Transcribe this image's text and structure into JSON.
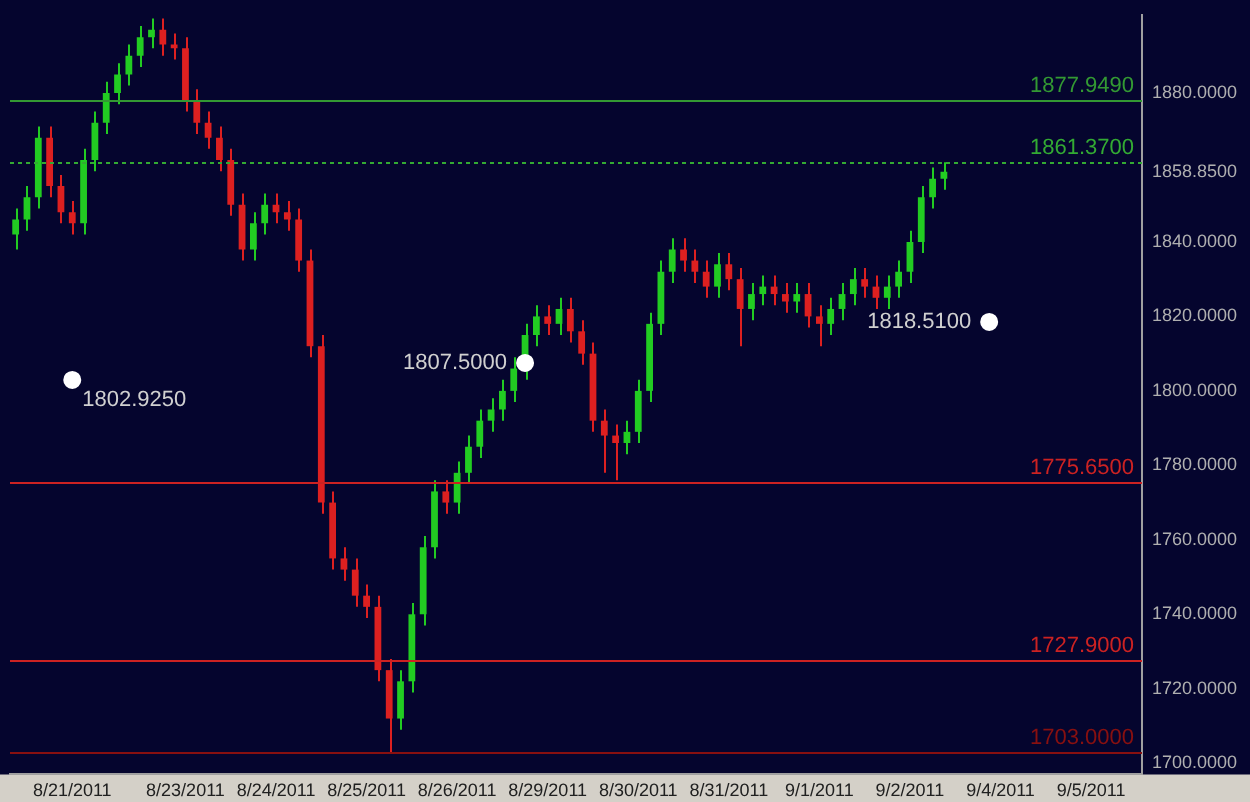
{
  "chart_data": {
    "type": "candlestick",
    "categories": [
      null,
      null,
      null,
      null,
      null,
      "8/21/2011",
      null,
      null,
      null,
      null,
      null,
      null,
      null,
      null,
      null,
      "8/23/2011",
      null,
      null,
      null,
      null,
      null,
      null,
      null,
      "8/24/2011",
      null,
      null,
      null,
      null,
      null,
      null,
      null,
      "8/25/2011",
      null,
      null,
      null,
      null,
      null,
      null,
      null,
      "8/26/2011",
      null,
      null,
      null,
      null,
      null,
      null,
      null,
      "8/29/2011",
      null,
      null,
      null,
      null,
      null,
      null,
      null,
      "8/30/2011",
      null,
      null,
      null,
      null,
      null,
      null,
      null,
      "8/31/2011",
      null,
      null,
      null,
      null,
      null,
      null,
      null,
      "9/1/2011",
      null,
      null,
      null,
      null,
      null,
      null,
      null,
      "9/2/2011",
      null,
      null,
      null,
      null,
      null,
      null,
      null,
      "9/4/2011",
      null,
      null,
      null,
      null,
      null,
      null,
      null,
      "9/5/2011",
      null,
      null,
      null,
      null
    ],
    "ohlc": [
      [
        1842,
        1849,
        1838,
        1846
      ],
      [
        1846,
        1855,
        1843,
        1852
      ],
      [
        1852,
        1871,
        1849,
        1868
      ],
      [
        1868,
        1871,
        1852,
        1855
      ],
      [
        1855,
        1858,
        1845,
        1848
      ],
      [
        1848,
        1851,
        1842,
        1845
      ],
      [
        1845,
        1865,
        1842,
        1862
      ],
      [
        1862,
        1875,
        1859,
        1872
      ],
      [
        1872,
        1883,
        1869,
        1880
      ],
      [
        1880,
        1888,
        1877,
        1885
      ],
      [
        1885,
        1893,
        1882,
        1890
      ],
      [
        1890,
        1898,
        1887,
        1895
      ],
      [
        1895,
        1900,
        1892,
        1897
      ],
      [
        1897,
        1900,
        1890,
        1893
      ],
      [
        1893,
        1896,
        1889,
        1892
      ],
      [
        1892,
        1895,
        1875,
        1878
      ],
      [
        1878,
        1881,
        1869,
        1872
      ],
      [
        1872,
        1875,
        1865,
        1868
      ],
      [
        1868,
        1871,
        1859,
        1862
      ],
      [
        1862,
        1865,
        1847,
        1850
      ],
      [
        1850,
        1853,
        1835,
        1838
      ],
      [
        1838,
        1848,
        1835,
        1845
      ],
      [
        1845,
        1853,
        1842,
        1850
      ],
      [
        1850,
        1853,
        1845,
        1848
      ],
      [
        1848,
        1851,
        1843,
        1846
      ],
      [
        1846,
        1849,
        1832,
        1835
      ],
      [
        1835,
        1838,
        1809,
        1812
      ],
      [
        1812,
        1815,
        1767,
        1770
      ],
      [
        1770,
        1773,
        1752,
        1755
      ],
      [
        1755,
        1758,
        1749,
        1752
      ],
      [
        1752,
        1755,
        1742,
        1745
      ],
      [
        1745,
        1748,
        1739,
        1742
      ],
      [
        1742,
        1745,
        1722,
        1725
      ],
      [
        1725,
        1728,
        1703,
        1712
      ],
      [
        1712,
        1725,
        1709,
        1722
      ],
      [
        1722,
        1743,
        1719,
        1740
      ],
      [
        1740,
        1761,
        1737,
        1758
      ],
      [
        1758,
        1776,
        1755,
        1773
      ],
      [
        1773,
        1776,
        1767,
        1770
      ],
      [
        1770,
        1781,
        1767,
        1778
      ],
      [
        1778,
        1788,
        1775,
        1785
      ],
      [
        1785,
        1795,
        1782,
        1792
      ],
      [
        1792,
        1798,
        1789,
        1795
      ],
      [
        1795,
        1803,
        1792,
        1800
      ],
      [
        1800,
        1809,
        1797,
        1806
      ],
      [
        1806,
        1818,
        1803,
        1815
      ],
      [
        1815,
        1823,
        1812,
        1820
      ],
      [
        1820,
        1823,
        1815,
        1818
      ],
      [
        1818,
        1825,
        1815,
        1822
      ],
      [
        1822,
        1825,
        1813,
        1816
      ],
      [
        1816,
        1819,
        1807,
        1810
      ],
      [
        1810,
        1813,
        1789,
        1792
      ],
      [
        1792,
        1795,
        1778,
        1788
      ],
      [
        1788,
        1791,
        1776,
        1786
      ],
      [
        1786,
        1792,
        1783,
        1789
      ],
      [
        1789,
        1803,
        1786,
        1800
      ],
      [
        1800,
        1821,
        1797,
        1818
      ],
      [
        1818,
        1835,
        1815,
        1832
      ],
      [
        1832,
        1841,
        1829,
        1838
      ],
      [
        1838,
        1841,
        1832,
        1835
      ],
      [
        1835,
        1838,
        1829,
        1832
      ],
      [
        1832,
        1835,
        1825,
        1828
      ],
      [
        1828,
        1837,
        1825,
        1834
      ],
      [
        1834,
        1837,
        1827,
        1830
      ],
      [
        1830,
        1833,
        1812,
        1822
      ],
      [
        1822,
        1829,
        1819,
        1826
      ],
      [
        1826,
        1831,
        1823,
        1828
      ],
      [
        1828,
        1831,
        1823,
        1826
      ],
      [
        1826,
        1829,
        1821,
        1824
      ],
      [
        1824,
        1829,
        1821,
        1826
      ],
      [
        1826,
        1829,
        1817,
        1820
      ],
      [
        1820,
        1823,
        1812,
        1818
      ],
      [
        1818,
        1825,
        1815,
        1822
      ],
      [
        1822,
        1829,
        1819,
        1826
      ],
      [
        1826,
        1833,
        1823,
        1830
      ],
      [
        1830,
        1833,
        1825,
        1828
      ],
      [
        1828,
        1831,
        1822,
        1825
      ],
      [
        1825,
        1831,
        1822,
        1828
      ],
      [
        1828,
        1835,
        1825,
        1832
      ],
      [
        1832,
        1843,
        1829,
        1840
      ],
      [
        1840,
        1855,
        1837,
        1852
      ],
      [
        1852,
        1860,
        1849,
        1857
      ],
      [
        1857,
        1861.37,
        1854,
        1858.85
      ],
      null,
      null,
      null,
      null,
      null,
      null,
      null,
      null,
      null,
      null,
      null,
      null,
      null,
      null,
      null,
      null,
      null
    ],
    "colors": [
      "#22cc22",
      "#22cc22",
      "#22cc22",
      "#dd2020",
      "#dd2020",
      "#dd2020",
      "#22cc22",
      "#22cc22",
      "#22cc22",
      "#22cc22",
      "#22cc22",
      "#22cc22",
      "#22cc22",
      "#dd2020",
      "#dd2020",
      "#dd2020",
      "#dd2020",
      "#dd2020",
      "#dd2020",
      "#dd2020",
      "#dd2020",
      "#22cc22",
      "#22cc22",
      "#dd2020",
      "#dd2020",
      "#dd2020",
      "#dd2020",
      "#dd2020",
      "#dd2020",
      "#dd2020",
      "#dd2020",
      "#dd2020",
      "#dd2020",
      "#dd2020",
      "#22cc22",
      "#22cc22",
      "#22cc22",
      "#22cc22",
      "#dd2020",
      "#22cc22",
      "#22cc22",
      "#22cc22",
      "#22cc22",
      "#22cc22",
      "#22cc22",
      "#22cc22",
      "#22cc22",
      "#dd2020",
      "#22cc22",
      "#dd2020",
      "#dd2020",
      "#dd2020",
      "#dd2020",
      "#dd2020",
      "#22cc22",
      "#22cc22",
      "#22cc22",
      "#22cc22",
      "#22cc22",
      "#dd2020",
      "#dd2020",
      "#dd2020",
      "#22cc22",
      "#dd2020",
      "#dd2020",
      "#22cc22",
      "#22cc22",
      "#dd2020",
      "#dd2020",
      "#22cc22",
      "#dd2020",
      "#dd2020",
      "#22cc22",
      "#22cc22",
      "#22cc22",
      "#dd2020",
      "#dd2020",
      "#22cc22",
      "#22cc22",
      "#22cc22",
      "#22cc22",
      "#22cc22",
      "#22cc22",
      null,
      null,
      null,
      null,
      null,
      null,
      null,
      null,
      null,
      null,
      null,
      null,
      null,
      null,
      null,
      null,
      null
    ],
    "series": [
      {
        "type": "scatter",
        "color": "#ffffff",
        "values": [
          null,
          null,
          null,
          null,
          null,
          1802.925,
          null,
          null,
          null,
          null,
          null,
          null,
          null,
          null,
          null,
          null,
          null,
          null,
          null,
          null,
          null,
          null,
          null,
          null,
          null,
          null,
          null,
          null,
          null,
          null,
          null,
          null,
          null,
          null,
          null,
          null,
          null,
          null,
          null,
          null,
          null,
          null,
          null,
          null,
          null,
          1807.5,
          null,
          null,
          null,
          null,
          null,
          null,
          null,
          null,
          null,
          null,
          null,
          null,
          null,
          null,
          null,
          null,
          null,
          null,
          null,
          null,
          null,
          null,
          null,
          null,
          null,
          null,
          null,
          null,
          null,
          null,
          null,
          null,
          null,
          null,
          null,
          null,
          null,
          null,
          null,
          null,
          1818.51,
          null,
          null,
          null,
          null,
          null,
          null,
          null,
          null,
          null,
          null,
          null,
          null,
          null
        ],
        "value_labels": [
          null,
          null,
          null,
          null,
          null,
          "1802.9250",
          null,
          null,
          null,
          null,
          null,
          null,
          null,
          null,
          null,
          null,
          null,
          null,
          null,
          null,
          null,
          null,
          null,
          null,
          null,
          null,
          null,
          null,
          null,
          null,
          null,
          null,
          null,
          null,
          null,
          null,
          null,
          null,
          null,
          null,
          null,
          null,
          null,
          null,
          null,
          "1807.5000",
          null,
          null,
          null,
          null,
          null,
          null,
          null,
          null,
          null,
          null,
          null,
          null,
          null,
          null,
          null,
          null,
          null,
          null,
          null,
          null,
          null,
          null,
          null,
          null,
          null,
          null,
          null,
          null,
          null,
          null,
          null,
          null,
          null,
          null,
          null,
          null,
          null,
          null,
          null,
          null,
          "1818.5100",
          null,
          null,
          null,
          null,
          null,
          null,
          null,
          null,
          null,
          null,
          null,
          null,
          null
        ]
      }
    ],
    "marker": "circle",
    "ylim": [
      1697,
      1901
    ],
    "yticks": [
      {
        "value": 1700,
        "label": "1700.0000"
      },
      {
        "value": 1720,
        "label": "1720.0000"
      },
      {
        "value": 1740,
        "label": "1740.0000"
      },
      {
        "value": 1760,
        "label": "1760.0000"
      },
      {
        "value": 1780,
        "label": "1780.0000"
      },
      {
        "value": 1800,
        "label": "1800.0000"
      },
      {
        "value": 1820,
        "label": "1820.0000"
      },
      {
        "value": 1840,
        "label": "1840.0000"
      },
      {
        "value": 1858.85,
        "label": "1858.8500"
      },
      {
        "value": 1880,
        "label": "1880.0000"
      }
    ],
    "ref_lines": [
      {
        "axis": "y",
        "value": 1877.949,
        "label": "1877.9490",
        "color": "#339933"
      },
      {
        "axis": "y",
        "value": 1861.37,
        "label": "1861.3700",
        "color": "#33aa33",
        "line_style": "dotted"
      },
      {
        "axis": "y",
        "value": 1775.65,
        "label": "1775.6500",
        "color": "#cc2222"
      },
      {
        "axis": "y",
        "value": 1727.9,
        "label": "1727.9000",
        "color": "#cc2222"
      },
      {
        "axis": "y",
        "value": 1703,
        "label": "1703.0000",
        "color": "#881010"
      }
    ],
    "grid": false,
    "legend": false
  }
}
